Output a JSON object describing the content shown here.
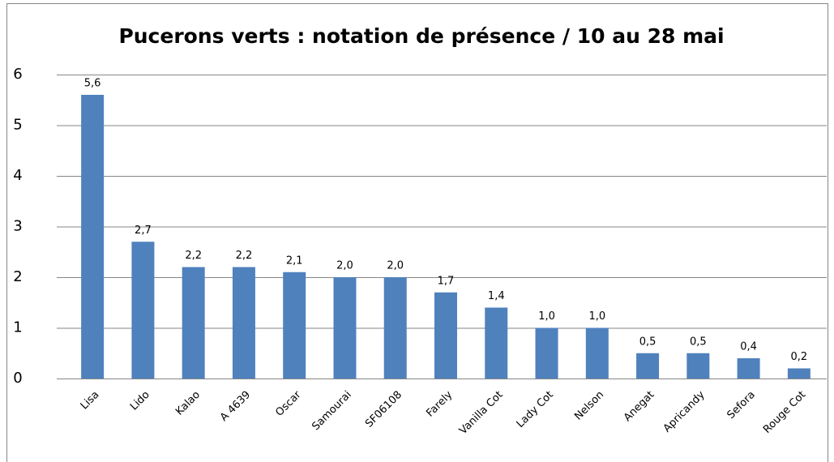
{
  "chart_data": {
    "type": "bar",
    "title": "Pucerons verts : notation de présence / 10 au 28 mai",
    "categories": [
      "Lisa",
      "Lido",
      "Kalao",
      "A 4639",
      "Oscar",
      "Samourai",
      "SF06108",
      "Farely",
      "Vanilla Cot",
      "Lady Cot",
      "Nelson",
      "Anegat",
      "Apricandy",
      "Sefora",
      "Rouge Cot"
    ],
    "values": [
      5.6,
      2.7,
      2.2,
      2.2,
      2.1,
      2.0,
      2.0,
      1.7,
      1.4,
      1.0,
      1.0,
      0.5,
      0.5,
      0.4,
      0.2
    ],
    "value_labels": [
      "5,6",
      "2,7",
      "2,2",
      "2,2",
      "2,1",
      "2,0",
      "2,0",
      "1,7",
      "1,4",
      "1,0",
      "1,0",
      "0,5",
      "0,5",
      "0,4",
      "0,2"
    ],
    "color": "#4f81bd",
    "ylim": [
      0,
      6
    ],
    "yticks": [
      0,
      1,
      2,
      3,
      4,
      5,
      6
    ],
    "grid": true
  }
}
